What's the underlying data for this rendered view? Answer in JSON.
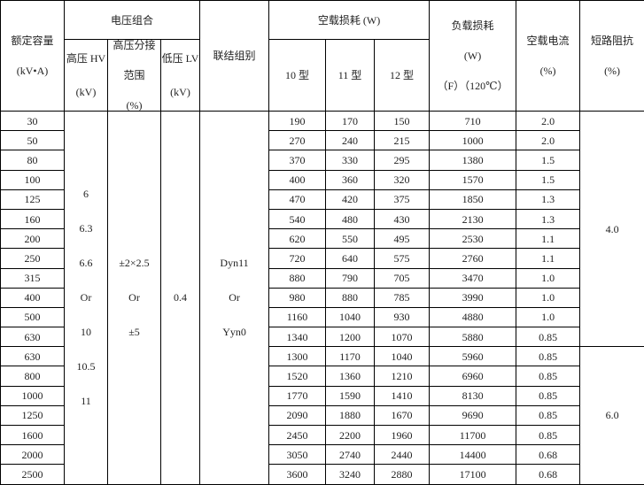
{
  "header": {
    "rated_capacity": [
      "额定容量",
      "(kV•A)"
    ],
    "voltage_group": "电压组合",
    "hv": [
      "高压 HV",
      "(kV)"
    ],
    "tap": [
      "高压分接",
      "范围",
      "(%)"
    ],
    "lv": [
      "低压 LV",
      "(kV)"
    ],
    "connection": "联结组别",
    "no_load_loss": "空载损耗 (W)",
    "types": [
      "10 型",
      "11 型",
      "12 型"
    ],
    "load_loss": [
      "负载损耗",
      "(W)",
      "（F）（120℃）"
    ],
    "no_load_current": [
      "空载电流",
      "(%)"
    ],
    "impedance": [
      "短路阻抗",
      "(%)"
    ]
  },
  "merged": {
    "hv": [
      "6",
      "6.3",
      "6.6",
      "Or",
      "10",
      "10.5",
      "11"
    ],
    "tap": [
      "±2×2.5",
      "Or",
      "±5"
    ],
    "lv": "0.4",
    "connection": [
      "Dyn11",
      "Or",
      "Yyn0"
    ],
    "impedance": [
      "4.0",
      "6.0"
    ]
  },
  "rows": [
    [
      "30",
      "190",
      "170",
      "150",
      "710",
      "2.0"
    ],
    [
      "50",
      "270",
      "240",
      "215",
      "1000",
      "2.0"
    ],
    [
      "80",
      "370",
      "330",
      "295",
      "1380",
      "1.5"
    ],
    [
      "100",
      "400",
      "360",
      "320",
      "1570",
      "1.5"
    ],
    [
      "125",
      "470",
      "420",
      "375",
      "1850",
      "1.3"
    ],
    [
      "160",
      "540",
      "480",
      "430",
      "2130",
      "1.3"
    ],
    [
      "200",
      "620",
      "550",
      "495",
      "2530",
      "1.1"
    ],
    [
      "250",
      "720",
      "640",
      "575",
      "2760",
      "1.1"
    ],
    [
      "315",
      "880",
      "790",
      "705",
      "3470",
      "1.0"
    ],
    [
      "400",
      "980",
      "880",
      "785",
      "3990",
      "1.0"
    ],
    [
      "500",
      "1160",
      "1040",
      "930",
      "4880",
      "1.0"
    ],
    [
      "630",
      "1340",
      "1200",
      "1070",
      "5880",
      "0.85"
    ],
    [
      "630",
      "1300",
      "1170",
      "1040",
      "5960",
      "0.85"
    ],
    [
      "800",
      "1520",
      "1360",
      "1210",
      "6960",
      "0.85"
    ],
    [
      "1000",
      "1770",
      "1590",
      "1410",
      "8130",
      "0.85"
    ],
    [
      "1250",
      "2090",
      "1880",
      "1670",
      "9690",
      "0.85"
    ],
    [
      "1600",
      "2450",
      "2200",
      "1960",
      "11700",
      "0.85"
    ],
    [
      "2000",
      "3050",
      "2740",
      "2440",
      "14400",
      "0.68"
    ],
    [
      "2500",
      "3600",
      "3240",
      "2880",
      "17100",
      "0.68"
    ]
  ]
}
